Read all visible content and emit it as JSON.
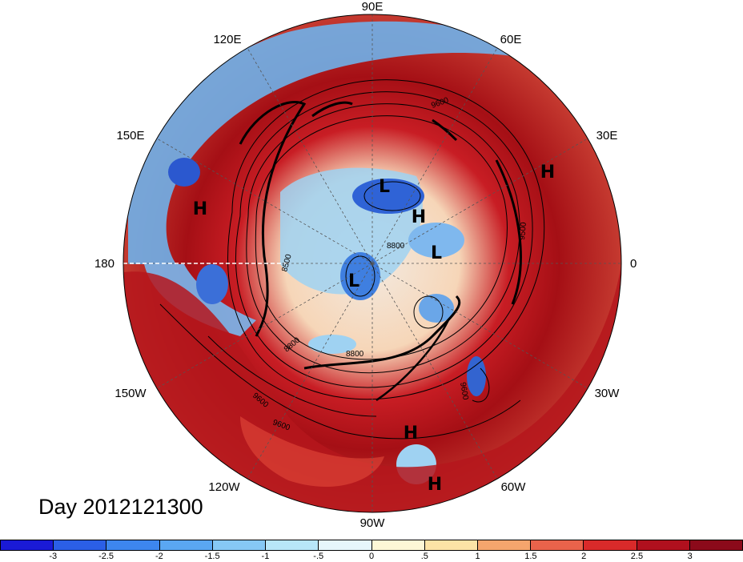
{
  "map": {
    "longitude_labels": [
      {
        "id": "90E",
        "text": "90E"
      },
      {
        "id": "60E",
        "text": "60E"
      },
      {
        "id": "30E",
        "text": "30E"
      },
      {
        "id": "0",
        "text": "0"
      },
      {
        "id": "30W",
        "text": "30W"
      },
      {
        "id": "60W",
        "text": "60W"
      },
      {
        "id": "90W",
        "text": "90W"
      },
      {
        "id": "120W",
        "text": "120W"
      },
      {
        "id": "150W",
        "text": "150W"
      },
      {
        "id": "180",
        "text": "180"
      },
      {
        "id": "150E",
        "text": "150E"
      },
      {
        "id": "120E",
        "text": "120E"
      }
    ],
    "pressure_centers": [
      {
        "id": "h1",
        "text": "H"
      },
      {
        "id": "h2",
        "text": "H"
      },
      {
        "id": "h3",
        "text": "H"
      },
      {
        "id": "h4",
        "text": "H"
      },
      {
        "id": "h5",
        "text": "H"
      },
      {
        "id": "l1",
        "text": "L"
      },
      {
        "id": "l2",
        "text": "L"
      },
      {
        "id": "l3",
        "text": "L"
      }
    ],
    "contour_labels": [
      {
        "id": "c1",
        "text": "9600"
      },
      {
        "id": "c2",
        "text": "8800"
      },
      {
        "id": "c3",
        "text": "8500"
      },
      {
        "id": "c4",
        "text": "8800"
      },
      {
        "id": "c5",
        "text": "8800"
      },
      {
        "id": "c6",
        "text": "9600"
      },
      {
        "id": "c7",
        "text": "9600"
      },
      {
        "id": "c8",
        "text": "9600"
      },
      {
        "id": "c9",
        "text": "9500"
      }
    ],
    "colors": {
      "ocean_fill": "#d9eefa",
      "anomaly_warm": "#a50f15",
      "anomaly_cool": "#2166ac"
    }
  },
  "day_label": "Day 2012121300",
  "colorbar": {
    "ticks": [
      "-3",
      "-2.5",
      "-2",
      "-1.5",
      "-1",
      "-.5",
      "0",
      ".5",
      "1",
      "1.5",
      "2",
      "2.5",
      "3"
    ],
    "colors": [
      "#1a1ad6",
      "#2b5fe6",
      "#3d86ee",
      "#5aa7f2",
      "#86c8f5",
      "#b8e6f8",
      "#e6f6fb",
      "#fdf7d6",
      "#fce3a6",
      "#f5a56d",
      "#e9634b",
      "#d92a2a",
      "#b0101e",
      "#8b0a1a"
    ]
  }
}
